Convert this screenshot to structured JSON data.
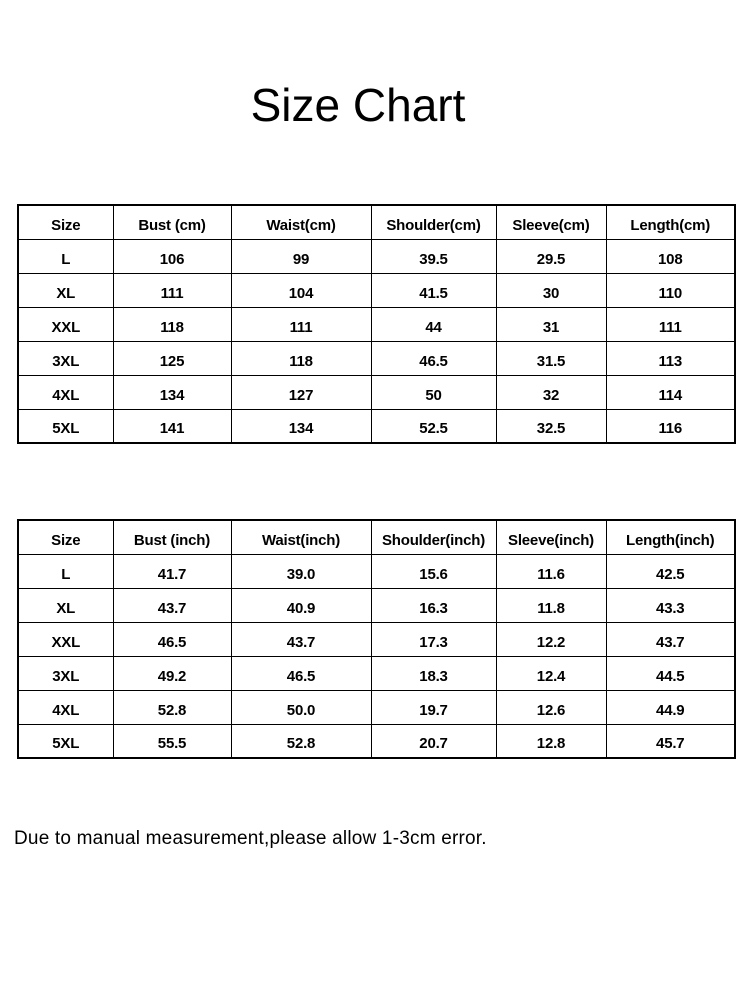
{
  "title": "Size Chart",
  "tables": [
    {
      "headers": [
        "Size",
        "Bust (cm)",
        "Waist(cm)",
        "Shoulder(cm)",
        "Sleeve(cm)",
        "Length(cm)"
      ],
      "rows": [
        [
          "L",
          "106",
          "99",
          "39.5",
          "29.5",
          "108"
        ],
        [
          "XL",
          "111",
          "104",
          "41.5",
          "30",
          "110"
        ],
        [
          "XXL",
          "118",
          "111",
          "44",
          "31",
          "111"
        ],
        [
          "3XL",
          "125",
          "118",
          "46.5",
          "31.5",
          "113"
        ],
        [
          "4XL",
          "134",
          "127",
          "50",
          "32",
          "114"
        ],
        [
          "5XL",
          "141",
          "134",
          "52.5",
          "32.5",
          "116"
        ]
      ]
    },
    {
      "headers": [
        "Size",
        "Bust (inch)",
        "Waist(inch)",
        "Shoulder(inch)",
        "Sleeve(inch)",
        "Length(inch)"
      ],
      "rows": [
        [
          "L",
          "41.7",
          "39.0",
          "15.6",
          "11.6",
          "42.5"
        ],
        [
          "XL",
          "43.7",
          "40.9",
          "16.3",
          "11.8",
          "43.3"
        ],
        [
          "XXL",
          "46.5",
          "43.7",
          "17.3",
          "12.2",
          "43.7"
        ],
        [
          "3XL",
          "49.2",
          "46.5",
          "18.3",
          "12.4",
          "44.5"
        ],
        [
          "4XL",
          "52.8",
          "50.0",
          "19.7",
          "12.6",
          "44.9"
        ],
        [
          "5XL",
          "55.5",
          "52.8",
          "20.7",
          "12.8",
          "45.7"
        ]
      ]
    }
  ],
  "note": "Due to manual measurement,please allow 1-3cm error."
}
